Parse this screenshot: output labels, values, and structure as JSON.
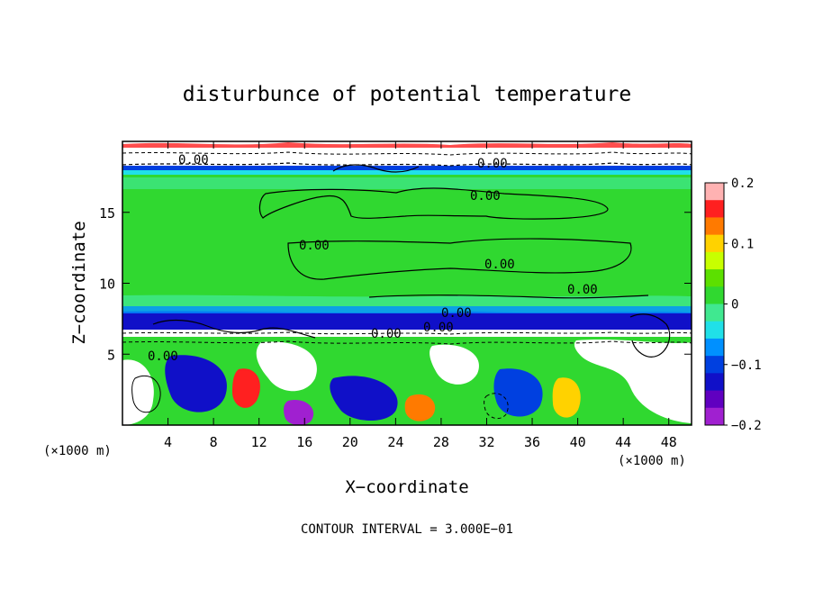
{
  "chart_data": {
    "type": "heatmap",
    "title": "disturbunce of potential temperature",
    "xlabel": "X−coordinate",
    "ylabel": "Z−coordinate",
    "x_unit": "(×1000 m)",
    "z_unit": "(×1000 m)",
    "xlim": [
      0,
      50
    ],
    "ylim": [
      0,
      20
    ],
    "x_ticks": [
      "4",
      "8",
      "12",
      "16",
      "20",
      "24",
      "28",
      "32",
      "36",
      "40",
      "44",
      "48"
    ],
    "y_ticks": [
      "5",
      "10",
      "15"
    ],
    "colorbar": {
      "range": [
        -0.2,
        0.2
      ],
      "tick_labels": [
        "0.2",
        "0.1",
        "0",
        "−0.1",
        "−0.2"
      ],
      "colors": [
        "#ffb2b2",
        "#ff2020",
        "#ff7a00",
        "#ffd200",
        "#c8ff00",
        "#5ce000",
        "#30d830",
        "#40e890",
        "#20e0e8",
        "#0090ff",
        "#0040e0",
        "#1010c8",
        "#6000c0",
        "#a020d0"
      ]
    },
    "contour_labels": [
      "0.00",
      "0.00",
      "0.00",
      "0.00",
      "0.00",
      "0.00",
      "0.00",
      "0.00",
      "0.00",
      "0.00"
    ],
    "contour_interval": "CONTOUR INTERVAL = 3.000E−01"
  }
}
